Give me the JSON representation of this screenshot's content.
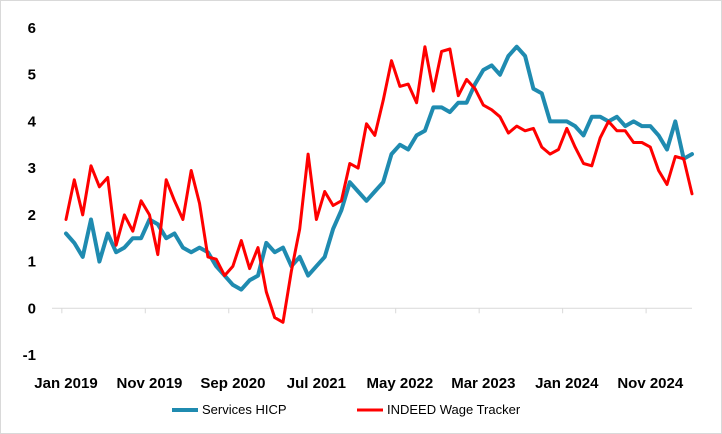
{
  "chart_data": {
    "type": "line",
    "title": "",
    "xlabel": "",
    "ylabel": "",
    "ylim": [
      -1,
      6
    ],
    "yticks": [
      -1,
      0,
      1,
      2,
      3,
      4,
      5,
      6
    ],
    "x_start": "Jan 2019",
    "x_tick_labels": [
      "Jan 2019",
      "Nov 2019",
      "Sep 2020",
      "Jul 2021",
      "May 2022",
      "Mar 2023",
      "Jan 2024",
      "Nov 2024"
    ],
    "grid": false,
    "legend_position": "bottom",
    "series": [
      {
        "name": "Services HICP",
        "color": "#1f8bb0",
        "values": [
          1.6,
          1.4,
          1.1,
          1.9,
          1.0,
          1.6,
          1.2,
          1.3,
          1.5,
          1.5,
          1.9,
          1.8,
          1.5,
          1.6,
          1.3,
          1.2,
          1.3,
          1.2,
          0.9,
          0.7,
          0.5,
          0.4,
          0.6,
          0.7,
          1.4,
          1.2,
          1.3,
          0.9,
          1.1,
          0.7,
          0.9,
          1.1,
          1.7,
          2.1,
          2.7,
          2.5,
          2.3,
          2.5,
          2.7,
          3.3,
          3.5,
          3.4,
          3.7,
          3.8,
          4.3,
          4.3,
          4.2,
          4.4,
          4.4,
          4.8,
          5.1,
          5.2,
          5.0,
          5.4,
          5.6,
          5.4,
          4.7,
          4.6,
          4.0,
          4.0,
          4.0,
          3.9,
          3.7,
          4.1,
          4.1,
          4.0,
          4.1,
          3.9,
          4.0,
          3.9,
          3.9,
          3.7,
          3.4,
          4.0,
          3.2,
          3.3
        ]
      },
      {
        "name": "INDEED Wage Tracker",
        "color": "#ff0000",
        "values": [
          1.9,
          2.75,
          2.0,
          3.05,
          2.6,
          2.8,
          1.35,
          2.0,
          1.65,
          2.3,
          2.0,
          1.15,
          2.75,
          2.3,
          1.9,
          2.95,
          2.25,
          1.1,
          1.05,
          0.7,
          0.9,
          1.45,
          0.85,
          1.3,
          0.35,
          -0.2,
          -0.3,
          0.8,
          1.7,
          3.3,
          1.9,
          2.5,
          2.2,
          2.3,
          3.1,
          3.0,
          3.95,
          3.7,
          4.45,
          5.3,
          4.75,
          4.8,
          4.4,
          5.6,
          4.65,
          5.5,
          5.55,
          4.55,
          4.9,
          4.7,
          4.35,
          4.25,
          4.1,
          3.75,
          3.9,
          3.8,
          3.85,
          3.45,
          3.3,
          3.4,
          3.85,
          3.45,
          3.1,
          3.05,
          3.65,
          4.0,
          3.8,
          3.8,
          3.55,
          3.55,
          3.45,
          2.95,
          2.65,
          3.25,
          3.2,
          2.45
        ]
      }
    ]
  }
}
